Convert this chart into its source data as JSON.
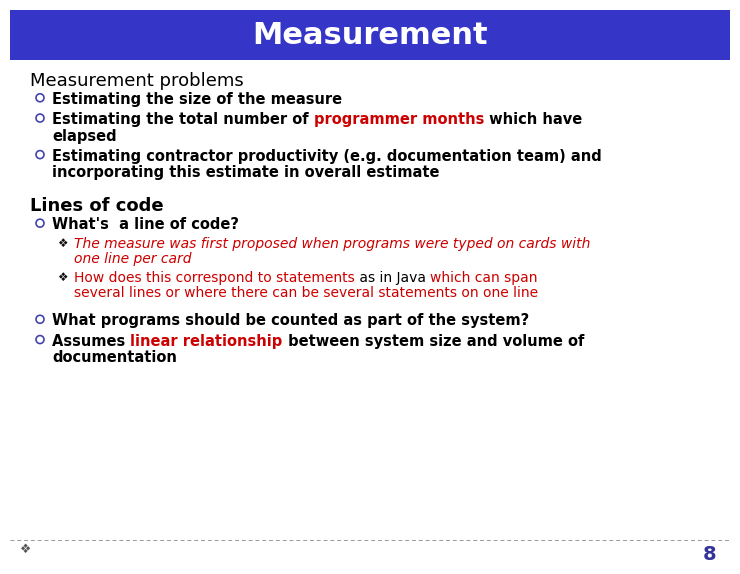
{
  "title": "Measurement",
  "title_bg_color": "#3535c8",
  "title_text_color": "#ffffff",
  "slide_bg_color": "#ffffff",
  "page_number": "8",
  "title_bar_height": 50,
  "section1_heading": "Measurement problems",
  "section2_heading": "Lines of code",
  "bullet_circle_color": "#4444aa",
  "bullet_star_color": "#000000",
  "black": "#000000",
  "red": "#cc0000"
}
